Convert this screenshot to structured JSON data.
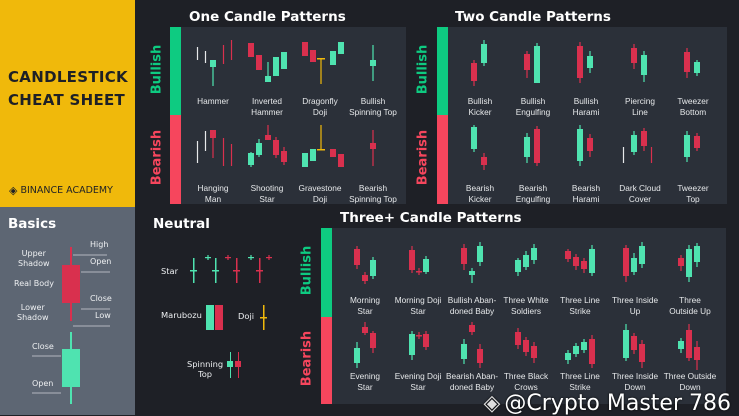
{
  "brand": {
    "title_line1": "CANDLESTICK",
    "title_line2": "CHEAT SHEET",
    "logo_text": "BINANCE ACADEMY"
  },
  "colors": {
    "bullish": "#0ecb81",
    "bearish": "#f6465d",
    "candle_green": "#4fe3b0",
    "candle_red": "#d9304e",
    "doji": "#f0b90b",
    "panel": "#2b3039",
    "background": "#1e2026",
    "brand": "#f0b90b",
    "basics": "#5d6673"
  },
  "basics": {
    "title": "Basics",
    "high": "High",
    "open": "Open",
    "close": "Close",
    "low": "Low",
    "upper_shadow": "Upper\nShadow",
    "real_body": "Real Body",
    "lower_shadow": "Lower\nShadow",
    "close2": "Close",
    "open2": "Open"
  },
  "neutral": {
    "title": "Neutral",
    "star": "Star",
    "marubozu": "Marubozu",
    "doji": "Doji",
    "spinning_top": "Spinning\nTop"
  },
  "one": {
    "title": "One Candle Patterns",
    "bullish_label": "Bullish",
    "bearish_label": "Bearish",
    "bullish": [
      "Hammer",
      "Inverted\nHammer",
      "Dragonfly\nDoji",
      "Bullish\nSpinning Top"
    ],
    "bearish": [
      "Hanging\nMan",
      "Shooting\nStar",
      "Gravestone\nDoji",
      "Bearish\nSpinning Top"
    ]
  },
  "two": {
    "title": "Two Candle Patterns",
    "bullish_label": "Bullish",
    "bearish_label": "Bearish",
    "bullish": [
      "Bullish\nKicker",
      "Bullish\nEngulfing",
      "Bullish\nHarami",
      "Piercing\nLine",
      "Tweezer\nBottom"
    ],
    "bearish": [
      "Bearish\nKicker",
      "Bearish\nEngulfing",
      "Bearish\nHarami",
      "Dark Cloud\nCover",
      "Tweezer\nTop"
    ]
  },
  "three": {
    "title": "Three+ Candle Patterns",
    "bullish_label": "Bullish",
    "bearish_label": "Bearish",
    "bullish": [
      "Morning\nStar",
      "Morning Doji\nStar",
      "Bullish Aban-\ndoned Baby",
      "Three White\nSoldiers",
      "Three Line\nStrike",
      "Three Inside\nUp",
      "Three\nOutside Up"
    ],
    "bearish": [
      "Evening\nStar",
      "Evening Doji\nStar",
      "Bearish Aban-\ndoned Baby",
      "Three Black\nCrows",
      "Three Line\nStrike",
      "Three Inside\nDown",
      "Three Outside\nDown"
    ]
  },
  "watermark": "@Crypto Master 786"
}
